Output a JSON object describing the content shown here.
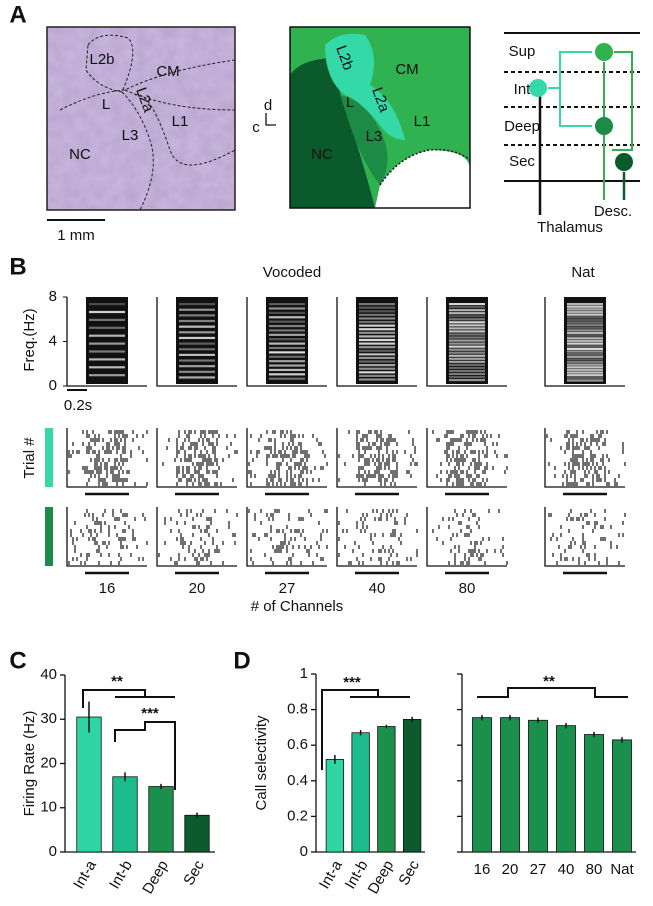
{
  "panel_a": {
    "letter": "A",
    "histology_labels": [
      "L2b",
      "CM",
      "L",
      "L2a",
      "L1",
      "NC",
      "L3"
    ],
    "scale_bar": "1 mm",
    "schematic_labels": [
      "L2b",
      "CM",
      "L",
      "L2a",
      "L1",
      "NC",
      "L3"
    ],
    "axis_labels": [
      "d",
      "c"
    ],
    "circuit_layers": [
      "Sup",
      "Int",
      "Deep",
      "Sec"
    ],
    "circuit_inputs": [
      "Thalamus",
      "Desc."
    ]
  },
  "panel_b": {
    "letter": "B",
    "vocoded": "Vocoded",
    "natural": "Nat",
    "ylabel": "Freq.(Hz)",
    "ylim": [
      0,
      8
    ],
    "yticks": [
      0,
      4,
      8
    ],
    "time_scale": "0.2s",
    "trial_label": "Trial #",
    "channels": [
      "16",
      "20",
      "27",
      "40",
      "80"
    ],
    "xlabel": "# of Channels"
  },
  "panel_c_letter": "C",
  "panel_d_letter": "D",
  "chart_data": [
    {
      "type": "bar",
      "ylabel": "Firing Rate (Hz)",
      "categories": [
        "Int-a",
        "Int-b",
        "Deep",
        "Sec"
      ],
      "values": [
        30.5,
        17,
        14.8,
        8.3
      ],
      "errors": [
        3.5,
        1,
        0.6,
        0.6
      ],
      "colors": [
        "#2fd6a4",
        "#1cbc8c",
        "#1b8f4c",
        "#0c5a2e"
      ],
      "ylim": [
        0,
        40
      ],
      "yticks": [
        0,
        10,
        20,
        30,
        40
      ],
      "annotations": [
        "**",
        "***"
      ]
    },
    {
      "type": "bar",
      "ylabel": "Call selectivity",
      "categories": [
        "Int-a",
        "Int-b",
        "Deep",
        "Sec"
      ],
      "values": [
        0.52,
        0.67,
        0.705,
        0.745
      ],
      "errors": [
        0.025,
        0.015,
        0.01,
        0.015
      ],
      "colors": [
        "#2fd6a4",
        "#1cbc8c",
        "#1b8f4c",
        "#0c5a2e"
      ],
      "ylim": [
        0,
        1
      ],
      "yticks": [
        0,
        0.2,
        0.4,
        0.6,
        0.8,
        1
      ],
      "annotations": [
        "***"
      ]
    },
    {
      "type": "bar",
      "categories": [
        "16",
        "20",
        "27",
        "40",
        "80",
        "Nat"
      ],
      "values": [
        0.755,
        0.755,
        0.74,
        0.71,
        0.66,
        0.63
      ],
      "errors": [
        0.015,
        0.015,
        0.015,
        0.015,
        0.015,
        0.015
      ],
      "color": "#1b8f4c",
      "ylim": [
        0,
        1
      ],
      "yticks": [
        0,
        0.2,
        0.4,
        0.6,
        0.8,
        1
      ],
      "annotations": [
        "**"
      ]
    }
  ]
}
